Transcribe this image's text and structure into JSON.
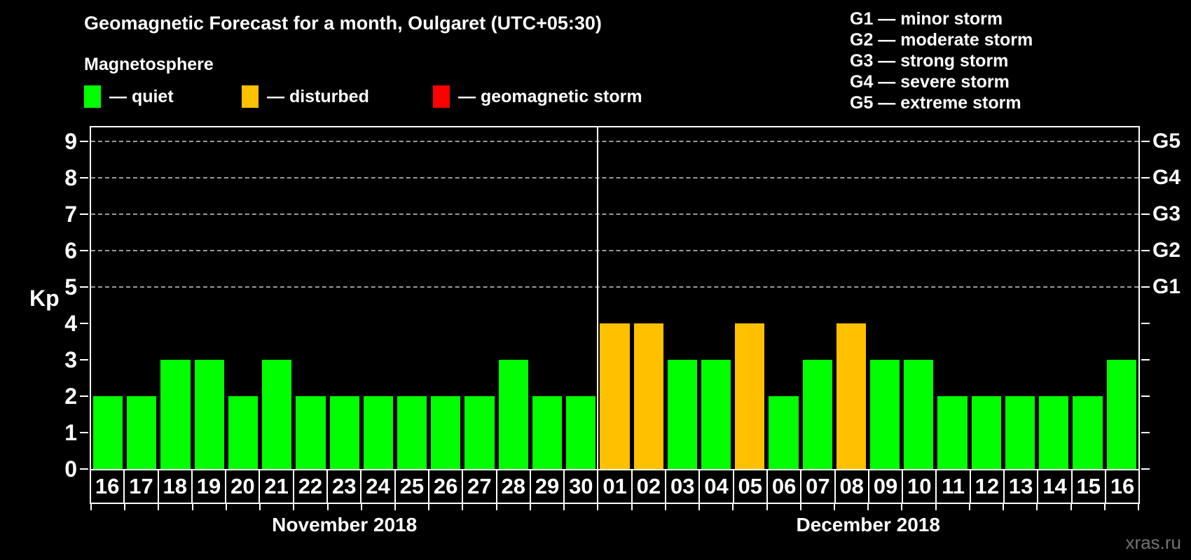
{
  "title": "Geomagnetic Forecast for a month, Oulgaret (UTC+05:30)",
  "subtitle": "Magnetosphere",
  "legend": {
    "items": [
      {
        "name": "quiet",
        "label": "— quiet",
        "color": "#00ff00"
      },
      {
        "name": "disturbed",
        "label": "— disturbed",
        "color": "#ffc000"
      },
      {
        "name": "storm",
        "label": "— geomagnetic storm",
        "color": "#ff0000"
      }
    ]
  },
  "storm_scale_legend": [
    "G1 — minor storm",
    "G2 — moderate storm",
    "G3 — strong storm",
    "G4 — severe storm",
    "G5 — extreme storm"
  ],
  "watermark": "xras.ru",
  "chart_data": {
    "type": "bar",
    "title": "Geomagnetic Forecast for a month, Oulgaret (UTC+05:30)",
    "ylabel": "Kp",
    "xlabel": "",
    "ylim": [
      0,
      9.42
    ],
    "yticks": [
      0,
      1,
      2,
      3,
      4,
      5,
      6,
      7,
      8,
      9
    ],
    "gridlines": [
      5,
      6,
      7,
      8,
      9
    ],
    "grid": "dashed horizontal at Kp 5-9 only",
    "legend_position": "top",
    "right_axis_labels": [
      {
        "label": "G1",
        "value": 5
      },
      {
        "label": "G2",
        "value": 6
      },
      {
        "label": "G3",
        "value": 7
      },
      {
        "label": "G4",
        "value": 8
      },
      {
        "label": "G5",
        "value": 9
      }
    ],
    "colors": {
      "quiet": "#00ff00",
      "disturbed": "#ffc000",
      "storm": "#ff0000"
    },
    "groups": [
      {
        "label": "November 2018",
        "days": [
          {
            "day": "16",
            "kp": 2,
            "status": "quiet"
          },
          {
            "day": "17",
            "kp": 2,
            "status": "quiet"
          },
          {
            "day": "18",
            "kp": 3,
            "status": "quiet"
          },
          {
            "day": "19",
            "kp": 3,
            "status": "quiet"
          },
          {
            "day": "20",
            "kp": 2,
            "status": "quiet"
          },
          {
            "day": "21",
            "kp": 3,
            "status": "quiet"
          },
          {
            "day": "22",
            "kp": 2,
            "status": "quiet"
          },
          {
            "day": "23",
            "kp": 2,
            "status": "quiet"
          },
          {
            "day": "24",
            "kp": 2,
            "status": "quiet"
          },
          {
            "day": "25",
            "kp": 2,
            "status": "quiet"
          },
          {
            "day": "26",
            "kp": 2,
            "status": "quiet"
          },
          {
            "day": "27",
            "kp": 2,
            "status": "quiet"
          },
          {
            "day": "28",
            "kp": 3,
            "status": "quiet"
          },
          {
            "day": "29",
            "kp": 2,
            "status": "quiet"
          },
          {
            "day": "30",
            "kp": 2,
            "status": "quiet"
          }
        ]
      },
      {
        "label": "December 2018",
        "days": [
          {
            "day": "01",
            "kp": 4,
            "status": "disturbed"
          },
          {
            "day": "02",
            "kp": 4,
            "status": "disturbed"
          },
          {
            "day": "03",
            "kp": 3,
            "status": "quiet"
          },
          {
            "day": "04",
            "kp": 3,
            "status": "quiet"
          },
          {
            "day": "05",
            "kp": 4,
            "status": "disturbed"
          },
          {
            "day": "06",
            "kp": 2,
            "status": "quiet"
          },
          {
            "day": "07",
            "kp": 3,
            "status": "quiet"
          },
          {
            "day": "08",
            "kp": 4,
            "status": "disturbed"
          },
          {
            "day": "09",
            "kp": 3,
            "status": "quiet"
          },
          {
            "day": "10",
            "kp": 3,
            "status": "quiet"
          },
          {
            "day": "11",
            "kp": 2,
            "status": "quiet"
          },
          {
            "day": "12",
            "kp": 2,
            "status": "quiet"
          },
          {
            "day": "13",
            "kp": 2,
            "status": "quiet"
          },
          {
            "day": "14",
            "kp": 2,
            "status": "quiet"
          },
          {
            "day": "15",
            "kp": 2,
            "status": "quiet"
          },
          {
            "day": "16",
            "kp": 3,
            "status": "quiet"
          }
        ]
      }
    ]
  }
}
